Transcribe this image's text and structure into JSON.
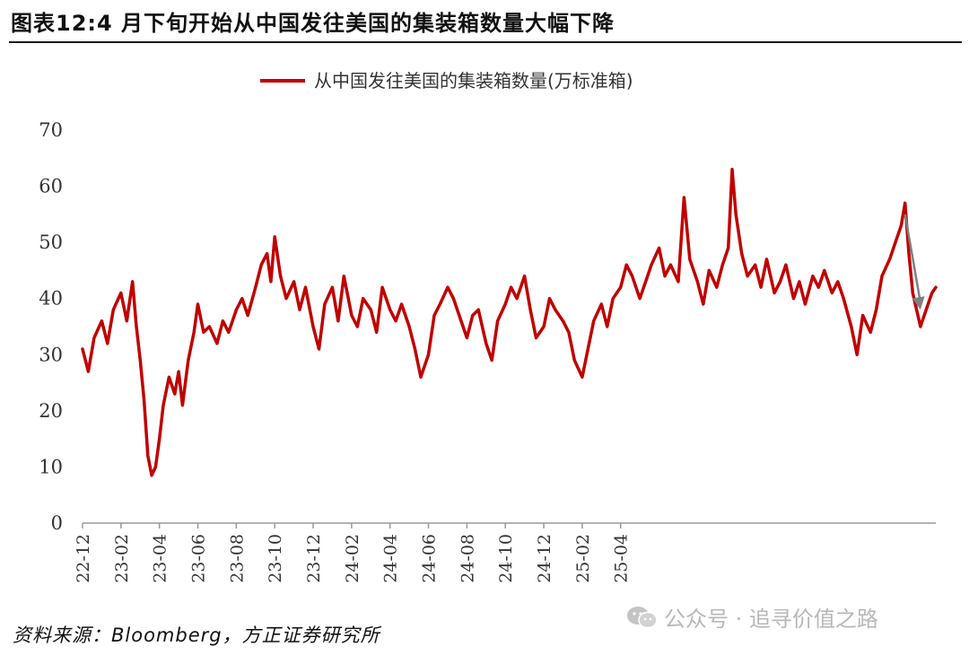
{
  "header": {
    "title": "图表12:4 月下旬开始从中国发往美国的集装箱数量大幅下降"
  },
  "footer": {
    "source": "资料来源：Bloomberg，方正证券研究所",
    "watermark": "公众号 · 追寻价值之路",
    "watermark_icon": "wechat-icon"
  },
  "chart_data": {
    "type": "line",
    "title": "",
    "xlabel": "",
    "ylabel": "",
    "ylim": [
      0,
      70
    ],
    "yticks": [
      0,
      10,
      20,
      30,
      40,
      50,
      60,
      70
    ],
    "xlim": [
      "2022-12",
      "2025-04"
    ],
    "xticks": [
      "22-12",
      "23-02",
      "23-04",
      "23-06",
      "23-08",
      "23-10",
      "23-12",
      "24-02",
      "24-04",
      "24-06",
      "24-08",
      "24-10",
      "24-12",
      "25-02",
      "25-04"
    ],
    "legend_position": "top-center",
    "grid": false,
    "series": [
      {
        "name": "从中国发往美国的集装箱数量(万标准箱)",
        "color": "#c00000",
        "points": [
          [
            0.0,
            31
          ],
          [
            0.3,
            27
          ],
          [
            0.6,
            33
          ],
          [
            1.0,
            36
          ],
          [
            1.3,
            32
          ],
          [
            1.6,
            38
          ],
          [
            2.0,
            41
          ],
          [
            2.3,
            36
          ],
          [
            2.6,
            43
          ],
          [
            2.8,
            35
          ],
          [
            3.0,
            29
          ],
          [
            3.2,
            22
          ],
          [
            3.4,
            12
          ],
          [
            3.6,
            8.5
          ],
          [
            3.8,
            10
          ],
          [
            4.0,
            15
          ],
          [
            4.2,
            21
          ],
          [
            4.5,
            26
          ],
          [
            4.8,
            23
          ],
          [
            5.0,
            27
          ],
          [
            5.2,
            21
          ],
          [
            5.5,
            29
          ],
          [
            5.8,
            34
          ],
          [
            6.0,
            39
          ],
          [
            6.3,
            34
          ],
          [
            6.6,
            35
          ],
          [
            7.0,
            32
          ],
          [
            7.3,
            36
          ],
          [
            7.6,
            34
          ],
          [
            8.0,
            38
          ],
          [
            8.3,
            40
          ],
          [
            8.6,
            37
          ],
          [
            9.0,
            42
          ],
          [
            9.3,
            46
          ],
          [
            9.6,
            48
          ],
          [
            9.8,
            43
          ],
          [
            10.0,
            51
          ],
          [
            10.3,
            44
          ],
          [
            10.6,
            40
          ],
          [
            11.0,
            43
          ],
          [
            11.3,
            38
          ],
          [
            11.6,
            42
          ],
          [
            12.0,
            35
          ],
          [
            12.3,
            31
          ],
          [
            12.6,
            39
          ],
          [
            13.0,
            42
          ],
          [
            13.3,
            36
          ],
          [
            13.6,
            44
          ],
          [
            14.0,
            37
          ],
          [
            14.3,
            35
          ],
          [
            14.6,
            40
          ],
          [
            15.0,
            38
          ],
          [
            15.3,
            34
          ],
          [
            15.6,
            42
          ],
          [
            16.0,
            38
          ],
          [
            16.3,
            36
          ],
          [
            16.6,
            39
          ],
          [
            17.0,
            35
          ],
          [
            17.3,
            31
          ],
          [
            17.6,
            26
          ],
          [
            18.0,
            30
          ],
          [
            18.3,
            37
          ],
          [
            18.6,
            39
          ],
          [
            19.0,
            42
          ],
          [
            19.3,
            40
          ],
          [
            19.6,
            37
          ],
          [
            20.0,
            33
          ],
          [
            20.3,
            37
          ],
          [
            20.6,
            38
          ],
          [
            21.0,
            32
          ],
          [
            21.3,
            29
          ],
          [
            21.6,
            36
          ],
          [
            22.0,
            39
          ],
          [
            22.3,
            42
          ],
          [
            22.6,
            40
          ],
          [
            23.0,
            44
          ],
          [
            23.3,
            38
          ],
          [
            23.6,
            33
          ],
          [
            24.0,
            35
          ],
          [
            24.3,
            40
          ],
          [
            24.6,
            38
          ],
          [
            25.0,
            36
          ],
          [
            25.3,
            34
          ],
          [
            25.6,
            29
          ],
          [
            26.0,
            26
          ],
          [
            26.3,
            31
          ],
          [
            26.6,
            36
          ],
          [
            27.0,
            39
          ],
          [
            27.3,
            35
          ],
          [
            27.6,
            40
          ],
          [
            28.0,
            42
          ],
          [
            28.3,
            46
          ],
          [
            28.6,
            44
          ],
          [
            29.0,
            40
          ],
          [
            29.3,
            43
          ],
          [
            29.6,
            46
          ],
          [
            30.0,
            49
          ],
          [
            30.3,
            44
          ],
          [
            30.6,
            46
          ],
          [
            31.0,
            43
          ],
          [
            31.3,
            58
          ],
          [
            31.6,
            47
          ],
          [
            32.0,
            43
          ],
          [
            32.3,
            39
          ],
          [
            32.6,
            45
          ],
          [
            33.0,
            42
          ],
          [
            33.3,
            46
          ],
          [
            33.6,
            49
          ],
          [
            33.8,
            63
          ],
          [
            34.0,
            55
          ],
          [
            34.3,
            48
          ],
          [
            34.6,
            44
          ],
          [
            35.0,
            46
          ],
          [
            35.3,
            42
          ],
          [
            35.6,
            47
          ],
          [
            36.0,
            41
          ],
          [
            36.3,
            43
          ],
          [
            36.6,
            46
          ],
          [
            37.0,
            40
          ],
          [
            37.3,
            43
          ],
          [
            37.6,
            39
          ],
          [
            38.0,
            44
          ],
          [
            38.3,
            42
          ],
          [
            38.6,
            45
          ],
          [
            39.0,
            41
          ],
          [
            39.3,
            43
          ],
          [
            39.6,
            40
          ],
          [
            40.0,
            35
          ],
          [
            40.3,
            30
          ],
          [
            40.6,
            37
          ],
          [
            41.0,
            34
          ],
          [
            41.3,
            38
          ],
          [
            41.6,
            44
          ],
          [
            42.0,
            47
          ],
          [
            42.3,
            50
          ],
          [
            42.6,
            53
          ],
          [
            42.8,
            57
          ],
          [
            43.0,
            48
          ],
          [
            43.2,
            41
          ],
          [
            43.4,
            38
          ],
          [
            43.6,
            35
          ],
          [
            43.8,
            37
          ],
          [
            44.0,
            39
          ],
          [
            44.2,
            41
          ],
          [
            44.4,
            42
          ]
        ]
      }
    ],
    "annotation": {
      "type": "arrow",
      "color": "#808080",
      "from": [
        42.8,
        55
      ],
      "to": [
        43.6,
        38
      ]
    }
  }
}
